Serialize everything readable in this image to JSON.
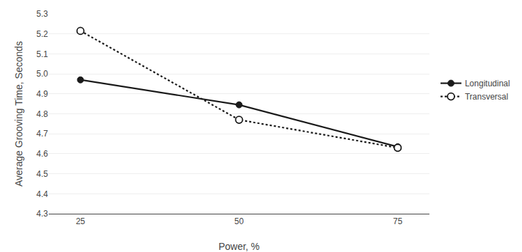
{
  "chart_data": {
    "type": "line",
    "x": [
      25,
      50,
      75
    ],
    "series": [
      {
        "name": "Longitudinal",
        "color": "#1a1a1a",
        "line_style": "solid",
        "marker": "circle",
        "values": [
          4.97,
          4.845,
          4.635
        ]
      },
      {
        "name": "Transversal",
        "color": "#1a1a1a",
        "line_style": "dotted",
        "marker": "open_circle",
        "values": [
          5.215,
          4.77,
          4.63
        ]
      }
    ],
    "xlabel": "Power, %",
    "ylabel": "Average Grooving Time, Seconds",
    "xlim": [
      20,
      80
    ],
    "xticks": [
      25,
      50,
      75
    ],
    "ylim": [
      4.3,
      5.3
    ],
    "yticks": [
      4.3,
      4.4,
      4.5,
      4.6,
      4.7,
      4.8,
      4.9,
      {
        "value": 5.0,
        "label": "5.0"
      },
      5.1,
      5.2,
      5.3
    ],
    "grid": "y",
    "legend": "right"
  }
}
